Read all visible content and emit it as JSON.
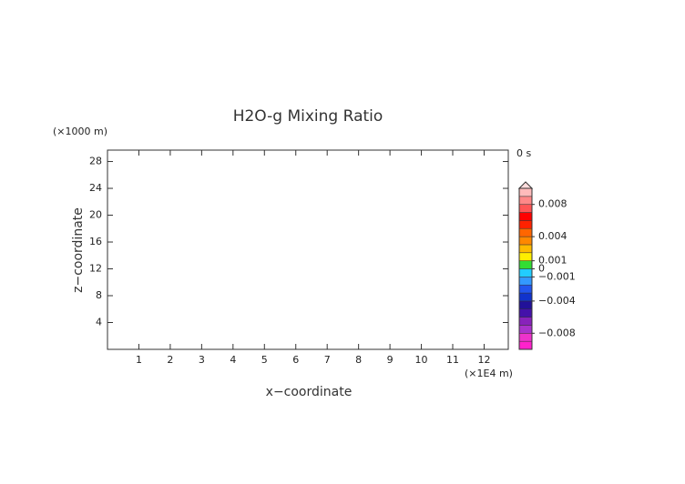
{
  "chart_data": {
    "type": "contour",
    "title": "H2O-g Mixing Ratio",
    "x_label": "x−coordinate",
    "y_label": "z−coordinate",
    "x_unit": "(×1E4 m)",
    "y_unit": "(×1000 m)",
    "time_label": "0 s",
    "xlim": [
      0,
      12.77
    ],
    "ylim": [
      0,
      29.7
    ],
    "xticks": [
      1,
      2,
      3,
      4,
      5,
      6,
      7,
      8,
      9,
      10,
      11,
      12
    ],
    "yticks": [
      4,
      8,
      12,
      16,
      20,
      24,
      28
    ],
    "colorbar": {
      "clim": [
        -0.01,
        0.01
      ],
      "colors": [
        "#ff22cc",
        "#ee33cc",
        "#aa33cc",
        "#8822bb",
        "#4411aa",
        "#221199",
        "#1133cc",
        "#2255ee",
        "#3399ff",
        "#22ccff",
        "#33dd33",
        "#ffee00",
        "#ffbb00",
        "#ff8800",
        "#ff6600",
        "#ff2200",
        "#ff0000",
        "#ff5555",
        "#ff8888",
        "#ffbbbb"
      ],
      "over_color": "#ffdddd",
      "ticks": [
        0.008,
        0.004,
        0.001,
        0,
        {
          "value": -0.001,
          "label": "−0.001"
        },
        {
          "value": -0.004,
          "label": "−0.004"
        },
        {
          "value": -0.008,
          "label": "−0.008"
        }
      ]
    }
  }
}
